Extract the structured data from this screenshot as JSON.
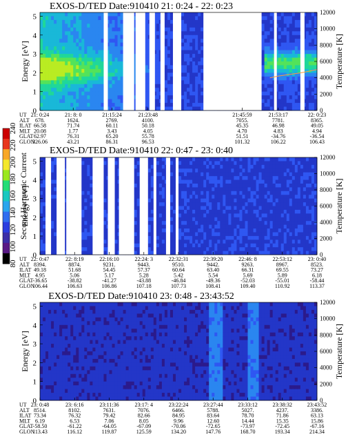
{
  "colorbar": {
    "label": "Second Harmonic Current",
    "ticks": [
      "80",
      "100",
      "120",
      "140",
      "160",
      "180",
      "200",
      "220",
      "240"
    ],
    "colors": [
      "#000000",
      "#5a1a86",
      "#3c2fa8",
      "#2b3ee0",
      "#2f6ef0",
      "#2aa6ee",
      "#18c8c0",
      "#22dd77",
      "#9ae81e",
      "#f4e82a",
      "#f8a828",
      "#e8361c",
      "#cc0000"
    ]
  },
  "panels": [
    {
      "title": "EXOS-D/TED   Date:910410  21: 0:24 - 22: 0:23",
      "ylabel": "Energy [eV]",
      "y2label": "Temperature [K]",
      "yticks": [
        "0",
        "1",
        "2",
        "3",
        "4",
        "5"
      ],
      "y2ticks": [
        "0",
        "2000",
        "4000",
        "6000",
        "8000",
        "10000",
        "12000"
      ],
      "row_labels": [
        "UT",
        "ALT",
        "ILAT",
        "MLT",
        "GLAT",
        "GLON"
      ],
      "columns": [
        {
          "UT": "21: 0:24",
          "ALT": "678.",
          "ILAT": "66.58",
          "MLT": "20.08",
          "GLAT": "62.97",
          "GLON": "326.06"
        },
        {
          "UT": "21: 8: 0",
          "ALT": "1624.",
          "ILAT": "71.74",
          "MLT": "1.77",
          "GLAT": "76.31",
          "GLON": "43.21"
        },
        {
          "UT": "21:15:24",
          "ALT": "2769.",
          "ILAT": "60.11",
          "MLT": "3.43",
          "GLAT": "65.20",
          "GLON": "86.31"
        },
        {
          "UT": "21:23:48",
          "ALT": "4100.",
          "ILAT": "50.18",
          "MLT": "4.05",
          "GLAT": "55.78",
          "GLON": "96.53"
        },
        {
          "UT": "21:45:59",
          "ALT": "7055.",
          "ILAT": "45.35",
          "MLT": "4.70",
          "GLAT": "51.51",
          "GLON": "101.32"
        },
        {
          "UT": "21:53:17",
          "ALT": "7781.",
          "ILAT": "46.98",
          "MLT": "4.83",
          "GLAT": "-34.76",
          "GLON": "106.22"
        },
        {
          "UT": "22: 0:23",
          "ALT": "8365.",
          "ILAT": "49.05",
          "MLT": "4.94",
          "GLAT": "-36.54",
          "GLON": "106.43"
        }
      ]
    },
    {
      "title": "EXOS-D/TED   Date:910410  22: 0:47 - 23: 0:40",
      "ylabel": "Energy [eV]",
      "y2label": "Temperature [K]",
      "yticks": [
        "0",
        "1",
        "2",
        "3",
        "4",
        "5"
      ],
      "y2ticks": [
        "0",
        "2000",
        "4000",
        "6000",
        "8000",
        "10000",
        "12000"
      ],
      "row_labels": [
        "UT",
        "ALT",
        "ILAT",
        "MLT",
        "GLAT",
        "GLON"
      ],
      "columns": [
        {
          "UT": "22: 0:47",
          "ALT": "8394.",
          "ILAT": "49.18",
          "MLT": "4.95",
          "GLAT": "-36.65",
          "GLON": "106.44"
        },
        {
          "UT": "22: 8:19",
          "ALT": "8874.",
          "ILAT": "51.68",
          "MLT": "5.06",
          "GLAT": "-38.82",
          "GLON": "106.63"
        },
        {
          "UT": "22:16:10",
          "ALT": "9231.",
          "ILAT": "54.45",
          "MLT": "5.17",
          "GLAT": "-41.27",
          "GLON": "106.86"
        },
        {
          "UT": "22:24: 3",
          "ALT": "9443.",
          "ILAT": "57.37",
          "MLT": "5.28",
          "GLAT": "-43.88",
          "GLON": "107.18"
        },
        {
          "UT": "22:32:31",
          "ALT": "9510.",
          "ILAT": "60.64",
          "MLT": "5.42",
          "GLAT": "-46.84",
          "GLON": "107.73"
        },
        {
          "UT": "22:39:20",
          "ALT": "9442.",
          "ILAT": "63.40",
          "MLT": "5.54",
          "GLAT": "-49.36",
          "GLON": "108.41"
        },
        {
          "UT": "22:46: 8",
          "ALT": "9263.",
          "ILAT": "66.31",
          "MLT": "5.69",
          "GLAT": "-52.03",
          "GLON": "109.40"
        },
        {
          "UT": "22:53:12",
          "ALT": "8967.",
          "ILAT": "69.55",
          "MLT": "5.89",
          "GLAT": "-55.01",
          "GLON": "110.92"
        },
        {
          "UT": "23: 0:40",
          "ALT": "8523.",
          "ILAT": "73.27",
          "MLT": "6.18",
          "GLAT": "-58.44",
          "GLON": "113.37"
        }
      ]
    },
    {
      "title": "EXOS-D/TED   Date:910410  23: 0:48 - 23:43:52",
      "ylabel": "Energy [eV]",
      "y2label": "Temperature [K]",
      "yticks": [
        "0",
        "1",
        "2",
        "3",
        "4",
        "5"
      ],
      "y2ticks": [
        "0",
        "2000",
        "4000",
        "6000",
        "8000",
        "10000",
        "12000"
      ],
      "row_labels": [
        "UT",
        "ALT",
        "ILAT",
        "MLT",
        "GLAT",
        "GLON"
      ],
      "columns": [
        {
          "UT": "23: 0:48",
          "ALT": "8514.",
          "ILAT": "73.34",
          "MLT": "6.19",
          "GLAT": "-58.50",
          "GLON": "113.43"
        },
        {
          "UT": "23: 6:16",
          "ALT": "8102.",
          "ILAT": "76.32",
          "MLT": "6.53",
          "GLAT": "-61.22",
          "GLON": "116.12"
        },
        {
          "UT": "23:11:36",
          "ALT": "7631.",
          "ILAT": "79.42",
          "MLT": "7.06",
          "GLAT": "-64.05",
          "GLON": "119.87"
        },
        {
          "UT": "23:17: 4",
          "ALT": "7076.",
          "ILAT": "82.66",
          "MLT": "8.05",
          "GLAT": "-67.09",
          "GLON": "125.59"
        },
        {
          "UT": "23:22:24",
          "ALT": "6466.",
          "ILAT": "84.95",
          "MLT": "9.96",
          "GLAT": "-70.06",
          "GLON": "134.20"
        },
        {
          "UT": "23:27:44",
          "ALT": "5788.",
          "ILAT": "83.64",
          "MLT": "12.60",
          "GLAT": "-72.65",
          "GLON": "147.76"
        },
        {
          "UT": "23:33:12",
          "ALT": "5027.",
          "ILAT": "78.70",
          "MLT": "14.44",
          "GLAT": "-73.97",
          "GLON": "168.70"
        },
        {
          "UT": "23:38:32",
          "ALT": "4237.",
          "ILAT": "71.86",
          "MLT": "15.35",
          "GLAT": "-72.45",
          "GLON": "193.34"
        },
        {
          "UT": "23:43:52",
          "ALT": "3386.",
          "ILAT": "63.13",
          "MLT": "15.86",
          "GLAT": "-67.16",
          "GLON": "214.34"
        }
      ]
    }
  ],
  "chart_data": [
    {
      "type": "heatmap",
      "title": "EXOS-D/TED   Date:910410  21: 0:24 - 22: 0:23",
      "ylabel": "Energy [eV]",
      "y2label": "Temperature [K]",
      "ylim": [
        0,
        5.2
      ],
      "y2lim": [
        0,
        12000
      ],
      "x_ticks": [
        "21: 0:24",
        "21: 8: 0",
        "21:15:24",
        "21:23:48",
        "21:45:59",
        "21:53:17",
        "22: 0:23"
      ],
      "colorbar_label": "Second Harmonic Current",
      "colorbar_range": [
        80,
        240
      ],
      "data_gap_spans_fraction": [
        [
          0.23,
          0.245
        ],
        [
          0.3,
          0.34
        ],
        [
          0.345,
          0.38
        ],
        [
          0.395,
          0.415
        ],
        [
          0.435,
          0.45
        ],
        [
          0.48,
          0.51
        ],
        [
          0.59,
          0.8
        ],
        [
          0.845,
          0.855
        ],
        [
          0.94,
          0.955
        ]
      ],
      "temperature_line": {
        "x_fraction": [
          0.83,
          0.86,
          0.9,
          0.94,
          0.97,
          1.0
        ],
        "values": [
          4000,
          4200,
          4400,
          4600,
          4800,
          5000
        ]
      }
    },
    {
      "type": "heatmap",
      "title": "EXOS-D/TED   Date:910410  22: 0:47 - 23: 0:40",
      "ylabel": "Energy [eV]",
      "y2label": "Temperature [K]",
      "ylim": [
        0,
        5.2
      ],
      "y2lim": [
        0,
        12000
      ],
      "x_ticks": [
        "22: 0:47",
        "22: 8:19",
        "22:16:10",
        "22:24: 3",
        "22:32:31",
        "22:39:20",
        "22:46: 8",
        "22:53:12",
        "23: 0:40"
      ],
      "colorbar_label": "Second Harmonic Current",
      "colorbar_range": [
        80,
        240
      ],
      "data_gap_spans_fraction": [
        [
          0.02,
          0.04
        ],
        [
          0.06,
          0.09
        ],
        [
          0.095,
          0.15
        ],
        [
          0.19,
          0.23
        ],
        [
          0.245,
          0.27
        ],
        [
          0.285,
          0.34
        ],
        [
          0.36,
          0.39
        ],
        [
          0.41,
          0.42
        ],
        [
          0.455,
          0.47
        ],
        [
          0.49,
          0.5
        ]
      ],
      "temperature_line": null
    },
    {
      "type": "heatmap",
      "title": "EXOS-D/TED   Date:910410  23: 0:48 - 23:43:52",
      "ylabel": "Energy [eV]",
      "y2label": "Temperature [K]",
      "ylim": [
        0,
        5.2
      ],
      "y2lim": [
        0,
        12000
      ],
      "x_ticks": [
        "23: 0:48",
        "23: 6:16",
        "23:11:36",
        "23:17: 4",
        "23:22:24",
        "23:27:44",
        "23:33:12",
        "23:38:32",
        "23:43:52"
      ],
      "colorbar_label": "Second Harmonic Current",
      "colorbar_range": [
        80,
        240
      ],
      "data_gap_spans_fraction": [],
      "temperature_line": null
    }
  ]
}
